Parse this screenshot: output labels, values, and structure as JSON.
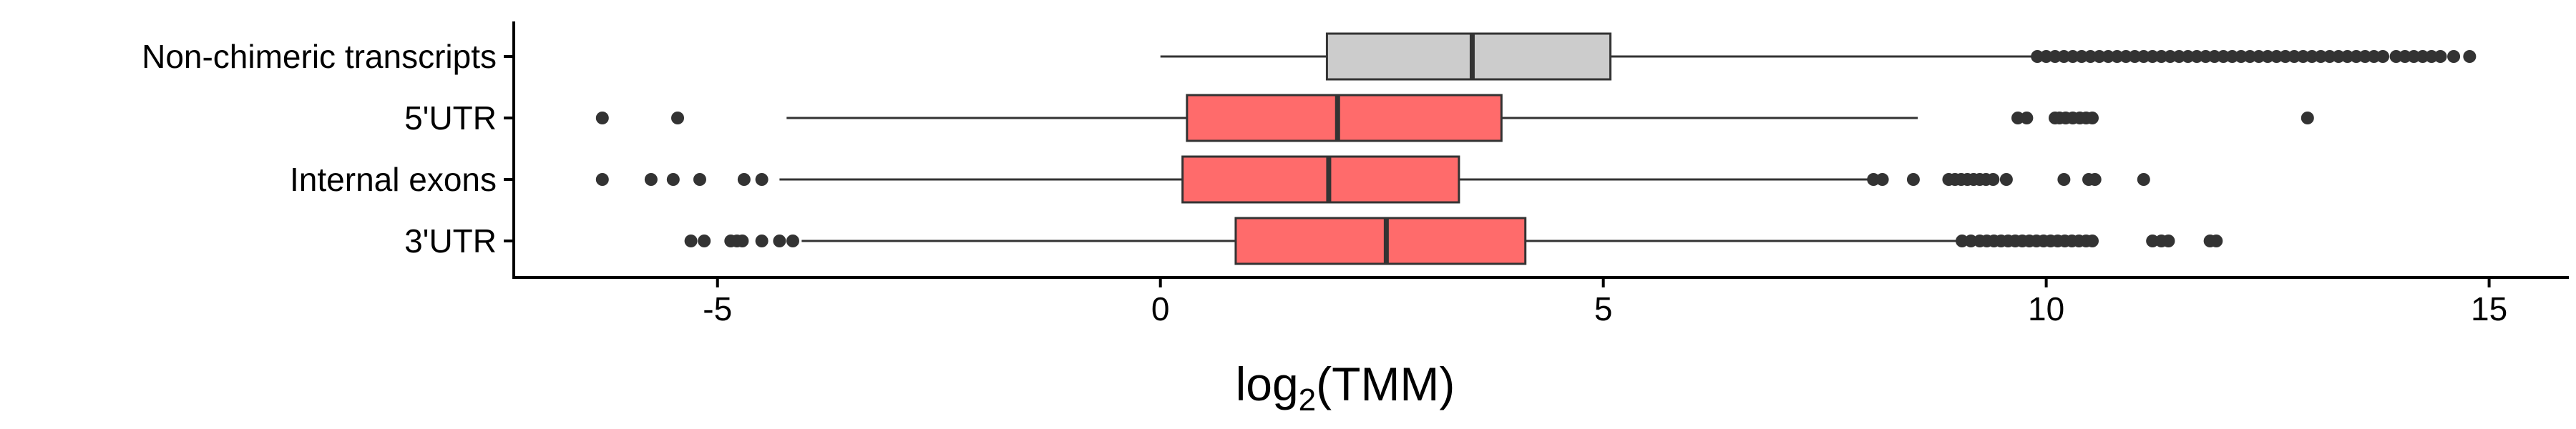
{
  "chart_data": {
    "type": "boxplot",
    "orientation": "horizontal",
    "xlabel": {
      "base": "log",
      "subscript": "2",
      "rest": "(TMM)"
    },
    "ylabel": "",
    "xlim": [
      -7.3,
      15.9
    ],
    "xticks": [
      -5,
      0,
      5,
      10,
      15
    ],
    "xtick_labels": [
      "-5",
      "0",
      "5",
      "10",
      "15"
    ],
    "grid": false,
    "legend": "none",
    "categories": [
      "Non-chimeric transcripts",
      "5'UTR",
      "Internal exons",
      "3'UTR"
    ],
    "series": [
      {
        "category": "Non-chimeric transcripts",
        "color": "#cccccc",
        "whisker_low": 0.0,
        "q1": 1.88,
        "median": 3.52,
        "q3": 5.08,
        "whisker_high": 9.85,
        "outliers": [
          9.9,
          10.0,
          10.1,
          10.2,
          10.3,
          10.4,
          10.5,
          10.6,
          10.7,
          10.8,
          10.9,
          11.0,
          11.1,
          11.2,
          11.3,
          11.4,
          11.5,
          11.6,
          11.7,
          11.8,
          11.9,
          12.0,
          12.1,
          12.2,
          12.3,
          12.4,
          12.5,
          12.6,
          12.7,
          12.8,
          12.9,
          13.0,
          13.1,
          13.2,
          13.3,
          13.4,
          13.5,
          13.6,
          13.7,
          13.8,
          13.95,
          14.05,
          14.15,
          14.25,
          14.35,
          14.45,
          14.6,
          14.78
        ]
      },
      {
        "category": "5'UTR",
        "color": "#ff6b6b",
        "whisker_low": -4.22,
        "q1": 0.3,
        "median": 2.0,
        "q3": 3.85,
        "whisker_high": 8.55,
        "outliers": [
          -6.3,
          -5.45,
          9.68,
          9.78,
          10.1,
          10.15,
          10.22,
          10.3,
          10.38,
          10.45,
          10.52,
          12.95
        ]
      },
      {
        "category": "Internal exons",
        "color": "#ff6b6b",
        "whisker_low": -4.3,
        "q1": 0.25,
        "median": 1.9,
        "q3": 3.37,
        "whisker_high": 8.0,
        "outliers": [
          -6.3,
          -5.75,
          -5.5,
          -5.2,
          -4.7,
          -4.5,
          8.05,
          8.15,
          8.5,
          8.9,
          8.97,
          9.04,
          9.11,
          9.18,
          9.25,
          9.32,
          9.4,
          9.55,
          10.2,
          10.48,
          10.55,
          11.1
        ]
      },
      {
        "category": "3'UTR",
        "color": "#ff6b6b",
        "whisker_low": -4.05,
        "q1": 0.85,
        "median": 2.55,
        "q3": 4.12,
        "whisker_high": 9.0,
        "outliers": [
          -5.3,
          -5.15,
          -4.85,
          -4.78,
          -4.72,
          -4.5,
          -4.3,
          -4.15,
          9.05,
          9.15,
          9.25,
          9.33,
          9.41,
          9.49,
          9.57,
          9.65,
          9.73,
          9.81,
          9.89,
          9.97,
          10.05,
          10.13,
          10.21,
          10.29,
          10.37,
          10.45,
          10.52,
          11.2,
          11.3,
          11.38,
          11.85,
          11.92
        ]
      }
    ]
  }
}
